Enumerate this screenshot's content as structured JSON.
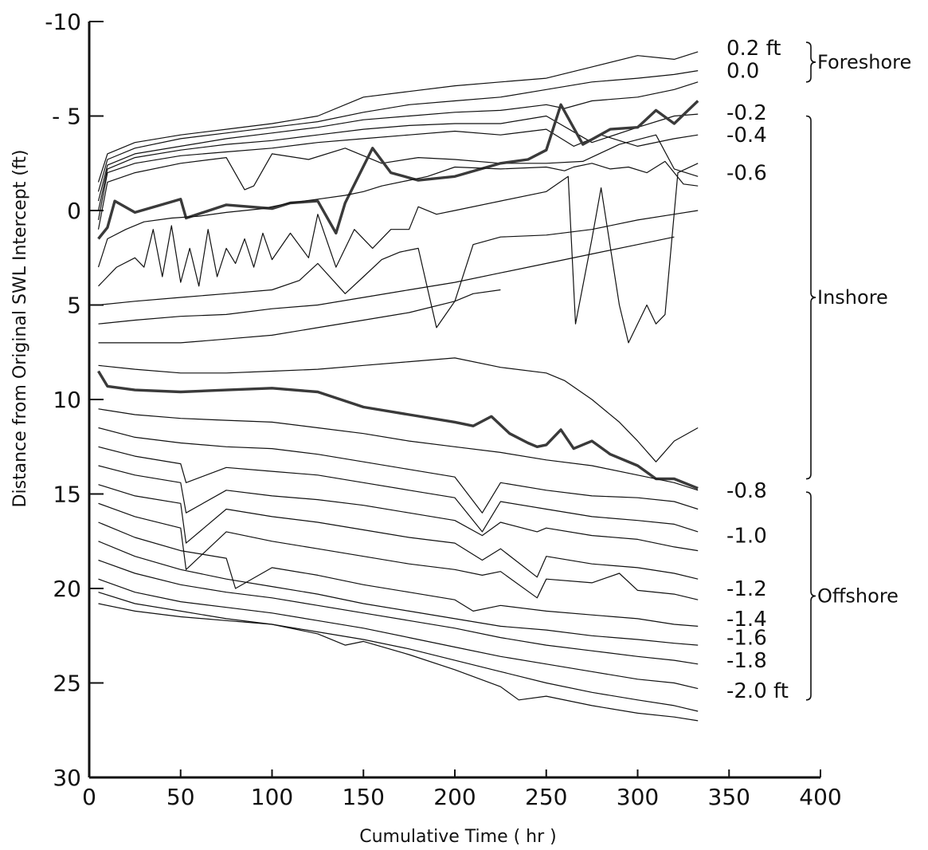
{
  "chart_data": {
    "type": "line",
    "title": "",
    "xlabel": "Cumulative Time ( hr )",
    "ylabel": "Distance from Original SWL Intercept (ft)",
    "xlim": [
      0,
      400
    ],
    "ylim": [
      -10,
      30
    ],
    "y_inverted": true,
    "x_ticks": [
      0,
      50,
      100,
      150,
      200,
      250,
      300,
      350,
      400
    ],
    "x_tick_labels": [
      "0",
      "50",
      "100",
      "150",
      "200",
      "250",
      "300",
      "350",
      "400"
    ],
    "y_ticks": [
      -10,
      -5,
      0,
      5,
      10,
      15,
      20,
      25,
      30
    ],
    "y_tick_labels": [
      "-10",
      "- 5",
      "0",
      "5",
      "10",
      "15",
      "20",
      "25",
      "30"
    ],
    "grid": false,
    "line_color": "#111111",
    "highlight_color": "#3a3a3a",
    "series": [
      {
        "name": "0.2 ft",
        "x": [
          5,
          10,
          25,
          50,
          75,
          100,
          125,
          150,
          175,
          200,
          225,
          250,
          275,
          300,
          320,
          333
        ],
        "y": [
          -1.5,
          -3,
          -3.6,
          -4,
          -4.3,
          -4.6,
          -5,
          -6,
          -6.3,
          -6.6,
          -6.8,
          -7,
          -7.6,
          -8.2,
          -8,
          -8.4
        ]
      },
      {
        "name": "0.0",
        "x": [
          5,
          10,
          25,
          50,
          75,
          100,
          125,
          150,
          175,
          200,
          225,
          250,
          275,
          300,
          320,
          333
        ],
        "y": [
          -1,
          -2.7,
          -3.3,
          -3.8,
          -4.1,
          -4.4,
          -4.7,
          -5.2,
          -5.6,
          -5.8,
          -6,
          -6.4,
          -6.8,
          -7,
          -7.2,
          -7.4
        ]
      },
      {
        "name": "-0.2",
        "x": [
          5,
          10,
          25,
          50,
          75,
          100,
          125,
          150,
          175,
          200,
          225,
          250,
          260,
          275,
          300,
          320,
          333
        ],
        "y": [
          -0.5,
          -2.4,
          -3,
          -3.4,
          -3.8,
          -4.1,
          -4.4,
          -4.8,
          -5,
          -5.2,
          -5.3,
          -5.6,
          -5.4,
          -5.8,
          -6,
          -6.4,
          -6.8
        ]
      },
      {
        "name": "-0.4",
        "x": [
          5,
          10,
          25,
          50,
          75,
          100,
          125,
          150,
          175,
          200,
          225,
          250,
          275,
          300,
          320,
          333
        ],
        "y": [
          0,
          -2.2,
          -2.8,
          -3.2,
          -3.5,
          -3.7,
          -4,
          -4.3,
          -4.5,
          -4.6,
          -4.6,
          -5,
          -3.6,
          -4.4,
          -5,
          -5.1
        ]
      },
      {
        "name": "-0.6",
        "x": [
          5,
          10,
          25,
          50,
          75,
          100,
          125,
          150,
          175,
          200,
          225,
          250,
          265,
          280,
          300,
          320,
          333
        ],
        "y": [
          0.5,
          -2,
          -2.5,
          -2.9,
          -3.1,
          -3.3,
          -3.6,
          -3.8,
          -4,
          -4.2,
          -4,
          -4.3,
          -3.4,
          -4,
          -3.4,
          -3.8,
          -4
        ]
      },
      {
        "name": "",
        "x": [
          5,
          10,
          25,
          50,
          75,
          85,
          90,
          100,
          120,
          140,
          160,
          180,
          200,
          225,
          250,
          270,
          290,
          310,
          320,
          333
        ],
        "y": [
          1,
          -1.5,
          -2,
          -2.5,
          -2.8,
          -1.1,
          -1.3,
          -3,
          -2.7,
          -3.3,
          -2.5,
          -2.8,
          -2.7,
          -2.5,
          -2.5,
          -2.6,
          -3.5,
          -4,
          -2.2,
          -1.8
        ]
      },
      {
        "name": "",
        "x": [
          5,
          10,
          14,
          25,
          50,
          53,
          75,
          100,
          110,
          125,
          135,
          140,
          155,
          165,
          180,
          200,
          225,
          240,
          250,
          258,
          270,
          285,
          300,
          310,
          320,
          333
        ],
        "y": [
          1.5,
          0.9,
          -0.5,
          0.1,
          -0.6,
          0.4,
          -0.3,
          -0.1,
          -0.4,
          -0.5,
          1.2,
          -0.4,
          -3.3,
          -2,
          -1.6,
          -1.8,
          -2.5,
          -2.7,
          -3.2,
          -5.6,
          -3.5,
          -4.3,
          -4.4,
          -5.3,
          -4.6,
          -5.8
        ]
      },
      {
        "name": "",
        "x": [
          5,
          10,
          20,
          30,
          45,
          60,
          75,
          95,
          110,
          125,
          140,
          150,
          160,
          175,
          185,
          200,
          225,
          250,
          260,
          265,
          275,
          285,
          295,
          305,
          315,
          325,
          333
        ],
        "y": [
          3,
          1.5,
          1,
          0.6,
          0.4,
          0.3,
          0.1,
          -0.1,
          -0.4,
          -0.6,
          -0.8,
          -1,
          -1.3,
          -1.6,
          -1.8,
          -2.3,
          -2.2,
          -2.3,
          -2.1,
          -2.3,
          -2.5,
          -2.2,
          -2.3,
          -2,
          -2.6,
          -1.4,
          -1.3
        ]
      },
      {
        "name": "",
        "x": [
          5,
          15,
          25,
          30,
          35,
          40,
          45,
          50,
          55,
          60,
          65,
          70,
          75,
          80,
          85,
          90,
          95,
          100,
          110,
          120,
          125,
          135,
          145,
          155,
          165,
          175,
          180,
          190,
          200,
          225,
          250,
          262,
          266,
          275,
          280,
          290,
          295,
          305,
          310,
          315,
          322,
          333
        ],
        "y": [
          4,
          3,
          2.5,
          3,
          1,
          3.5,
          0.8,
          3.8,
          2,
          4,
          1,
          3.5,
          2,
          2.8,
          1.5,
          3,
          1.2,
          2.6,
          1.2,
          2.5,
          0.2,
          3,
          1,
          2,
          1,
          1,
          -0.2,
          0.2,
          0,
          -0.5,
          -1,
          -1.8,
          6,
          1.5,
          -1.2,
          5,
          7,
          5,
          6,
          5.5,
          -2,
          -2.5
        ]
      },
      {
        "name": "",
        "x": [
          5,
          25,
          50,
          75,
          100,
          115,
          125,
          140,
          150,
          160,
          170,
          180,
          190,
          200,
          210,
          225,
          250,
          275,
          300,
          320,
          333
        ],
        "y": [
          5,
          4.8,
          4.6,
          4.4,
          4.2,
          3.7,
          2.8,
          4.4,
          3.5,
          2.6,
          2.2,
          2,
          6.2,
          4.8,
          1.8,
          1.4,
          1.3,
          1,
          0.5,
          0.2,
          0
        ]
      },
      {
        "name": "",
        "x": [
          5,
          25,
          50,
          75,
          100,
          125,
          150,
          175,
          200,
          225,
          250,
          275,
          300,
          320
        ],
        "y": [
          6,
          5.8,
          5.6,
          5.5,
          5.2,
          5,
          4.6,
          4.2,
          3.8,
          3.3,
          2.8,
          2.3,
          1.8,
          1.4
        ]
      },
      {
        "name": "",
        "x": [
          5,
          25,
          50,
          75,
          100,
          125,
          150,
          175,
          200,
          210,
          225
        ],
        "y": [
          7,
          7,
          7,
          6.8,
          6.6,
          6.2,
          5.8,
          5.4,
          4.8,
          4.4,
          4.2
        ]
      },
      {
        "name": "",
        "x": [
          5,
          25,
          50,
          75,
          100,
          125,
          150,
          175,
          200,
          225,
          250,
          260,
          275,
          290,
          300,
          310,
          320,
          333
        ],
        "y": [
          8.2,
          8.4,
          8.6,
          8.6,
          8.5,
          8.4,
          8.2,
          8,
          7.8,
          8.3,
          8.6,
          9,
          10,
          11.2,
          12.2,
          13.3,
          12.2,
          11.5
        ]
      },
      {
        "name": "",
        "x": [
          5,
          10,
          25,
          50,
          75,
          100,
          125,
          150,
          175,
          200,
          210,
          220,
          230,
          240,
          245,
          250,
          258,
          265,
          275,
          285,
          300,
          310,
          320,
          333
        ],
        "y": [
          8.5,
          9.3,
          9.5,
          9.6,
          9.5,
          9.4,
          9.6,
          10.4,
          10.8,
          11.2,
          11.4,
          10.9,
          11.8,
          12.3,
          12.5,
          12.4,
          11.6,
          12.6,
          12.2,
          12.9,
          13.5,
          14.2,
          14.2,
          14.7
        ]
      },
      {
        "name": "",
        "x": [
          5,
          25,
          50,
          75,
          100,
          125,
          150,
          175,
          200,
          225,
          250,
          275,
          300,
          320,
          333
        ],
        "y": [
          10.5,
          10.8,
          11,
          11.1,
          11.2,
          11.5,
          11.8,
          12.2,
          12.5,
          12.8,
          13.2,
          13.5,
          14,
          14.4,
          14.8
        ]
      },
      {
        "name": "-0.8",
        "x": [
          5,
          25,
          50,
          75,
          100,
          125,
          150,
          175,
          200,
          215,
          225,
          250,
          275,
          300,
          320,
          333
        ],
        "y": [
          11.5,
          12,
          12.3,
          12.5,
          12.6,
          12.9,
          13.3,
          13.7,
          14.1,
          16,
          14.4,
          14.8,
          15.1,
          15.2,
          15.4,
          15.8
        ]
      },
      {
        "name": "",
        "x": [
          5,
          25,
          50,
          53,
          75,
          100,
          125,
          150,
          175,
          200,
          215,
          225,
          250,
          275,
          300,
          320,
          333
        ],
        "y": [
          12.5,
          13,
          13.4,
          14.4,
          13.6,
          13.8,
          14,
          14.4,
          14.8,
          15.2,
          17,
          15.4,
          15.8,
          16.2,
          16.4,
          16.6,
          17
        ]
      },
      {
        "name": "-1.0",
        "x": [
          5,
          25,
          50,
          53,
          75,
          100,
          125,
          150,
          175,
          200,
          215,
          225,
          245,
          250,
          275,
          300,
          320,
          333
        ],
        "y": [
          13.5,
          14,
          14.4,
          16,
          14.8,
          15.1,
          15.3,
          15.6,
          16,
          16.4,
          17.2,
          16.5,
          17,
          16.8,
          17.2,
          17.4,
          17.8,
          18
        ]
      },
      {
        "name": "",
        "x": [
          5,
          25,
          50,
          53,
          75,
          100,
          125,
          150,
          175,
          200,
          215,
          225,
          245,
          250,
          275,
          300,
          320,
          333
        ],
        "y": [
          14.5,
          15.1,
          15.5,
          17.6,
          15.8,
          16.2,
          16.5,
          16.9,
          17.3,
          17.6,
          18.5,
          17.9,
          19.4,
          18.3,
          18.7,
          18.9,
          19.2,
          19.5
        ]
      },
      {
        "name": "",
        "x": [
          5,
          25,
          50,
          53,
          75,
          100,
          125,
          150,
          175,
          200,
          215,
          225,
          245,
          250,
          275,
          290,
          300,
          320,
          333
        ],
        "y": [
          15.5,
          16.2,
          16.8,
          19,
          17,
          17.5,
          17.9,
          18.3,
          18.7,
          19,
          19.3,
          19.1,
          20.5,
          19.5,
          19.7,
          19.2,
          20.1,
          20.3,
          20.6
        ]
      },
      {
        "name": "-1.2",
        "x": [
          5,
          25,
          50,
          75,
          80,
          100,
          125,
          150,
          175,
          200,
          210,
          225,
          250,
          275,
          300,
          320,
          333
        ],
        "y": [
          16.5,
          17.3,
          18,
          18.4,
          20,
          18.9,
          19.3,
          19.8,
          20.2,
          20.6,
          21.2,
          20.9,
          21.2,
          21.4,
          21.6,
          21.9,
          22
        ]
      },
      {
        "name": "-1.4",
        "x": [
          5,
          25,
          50,
          75,
          100,
          125,
          150,
          175,
          200,
          225,
          250,
          275,
          300,
          320,
          333
        ],
        "y": [
          17.5,
          18.3,
          19,
          19.5,
          19.9,
          20.3,
          20.8,
          21.2,
          21.6,
          22,
          22.2,
          22.5,
          22.7,
          22.9,
          23
        ]
      },
      {
        "name": "-1.6",
        "x": [
          5,
          25,
          50,
          75,
          100,
          125,
          150,
          175,
          200,
          225,
          250,
          275,
          300,
          320,
          333
        ],
        "y": [
          18.5,
          19.2,
          19.8,
          20.2,
          20.5,
          20.9,
          21.3,
          21.7,
          22.1,
          22.6,
          23,
          23.3,
          23.6,
          23.8,
          24
        ]
      },
      {
        "name": "-1.8",
        "x": [
          5,
          25,
          50,
          75,
          100,
          125,
          150,
          175,
          200,
          225,
          250,
          275,
          300,
          320,
          333
        ],
        "y": [
          19.5,
          20.2,
          20.7,
          21,
          21.3,
          21.7,
          22.1,
          22.6,
          23.1,
          23.6,
          24,
          24.4,
          24.8,
          25,
          25.3
        ]
      },
      {
        "name": "",
        "x": [
          5,
          25,
          50,
          75,
          100,
          125,
          150,
          175,
          200,
          225,
          250,
          275,
          300,
          320,
          333
        ],
        "y": [
          20.2,
          20.8,
          21.2,
          21.6,
          21.9,
          22.3,
          22.7,
          23.2,
          23.8,
          24.4,
          25,
          25.5,
          25.9,
          26.2,
          26.5
        ]
      },
      {
        "name": "-2.0 ft",
        "x": [
          5,
          25,
          50,
          75,
          100,
          125,
          140,
          150,
          175,
          200,
          225,
          235,
          250,
          275,
          300,
          320,
          333
        ],
        "y": [
          20.8,
          21.2,
          21.5,
          21.7,
          21.9,
          22.4,
          23,
          22.8,
          23.5,
          24.3,
          25.2,
          25.9,
          25.7,
          26.2,
          26.6,
          26.8,
          27
        ]
      }
    ],
    "highlight_series_index": [
      6,
      13
    ],
    "contour_labels": [
      "0.2 ft",
      "0.0",
      "-0.2",
      "-0.4",
      "-0.6",
      "-0.8",
      "-1.0",
      "-1.2",
      "-1.4",
      "-1.6",
      "-1.8",
      "-2.0 ft"
    ],
    "contour_label_y": [
      -8.6,
      -7.4,
      -5.2,
      -4.0,
      -2.0,
      14.8,
      17.2,
      20.0,
      21.6,
      22.6,
      23.8,
      25.4
    ],
    "zones": [
      {
        "label": "Foreshore",
        "from": -8.9,
        "to": -6.8
      },
      {
        "label": "Inshore",
        "from": -5.0,
        "to": 14.2
      },
      {
        "label": "Offshore",
        "from": 14.9,
        "to": 25.9
      }
    ]
  }
}
